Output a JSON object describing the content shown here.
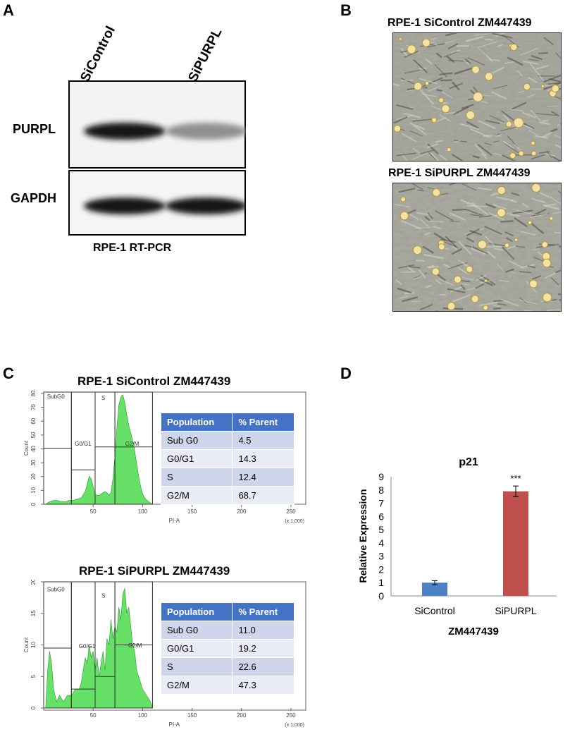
{
  "panel_a": {
    "letter": "A",
    "lane_labels": [
      "SiControl",
      "SiPURPL"
    ],
    "rows": [
      {
        "label": "PURPL",
        "band_intensity": [
          1.0,
          0.45
        ]
      },
      {
        "label": "GAPDH",
        "band_intensity": [
          1.0,
          1.0
        ]
      }
    ],
    "caption": "RPE-1 RT-PCR"
  },
  "panel_b": {
    "letter": "B",
    "images": [
      {
        "title": "RPE-1 SiControl ZM447439"
      },
      {
        "title": "RPE-1 SiPURPL ZM447439"
      }
    ]
  },
  "panel_c": {
    "letter": "C",
    "histograms": [
      {
        "title": "RPE-1 SiControl ZM447439",
        "gate_labels": [
          "SubG0",
          "G0/G1",
          "S",
          "G2/M"
        ],
        "y_ticks": [
          "0",
          "10",
          "20",
          "30",
          "40",
          "50",
          "60",
          "70",
          "80"
        ],
        "x_ticks": [
          "50",
          "100",
          "150",
          "200",
          "250"
        ],
        "x_label": "PI-A",
        "x_unit": "(x 1,000)",
        "y_label": "Count",
        "ymax": 88,
        "profile": [
          [
            2,
            0
          ],
          [
            6,
            2
          ],
          [
            10,
            3
          ],
          [
            14,
            3
          ],
          [
            18,
            2
          ],
          [
            22,
            2
          ],
          [
            26,
            3
          ],
          [
            30,
            3
          ],
          [
            34,
            4
          ],
          [
            38,
            5
          ],
          [
            42,
            10
          ],
          [
            44,
            16
          ],
          [
            46,
            22
          ],
          [
            48,
            20
          ],
          [
            50,
            14
          ],
          [
            52,
            8
          ],
          [
            54,
            7
          ],
          [
            56,
            7
          ],
          [
            58,
            8
          ],
          [
            60,
            9
          ],
          [
            62,
            10
          ],
          [
            64,
            9
          ],
          [
            66,
            7
          ],
          [
            68,
            9
          ],
          [
            70,
            20
          ],
          [
            72,
            38
          ],
          [
            74,
            60
          ],
          [
            76,
            78
          ],
          [
            78,
            84
          ],
          [
            80,
            86
          ],
          [
            82,
            80
          ],
          [
            84,
            70
          ],
          [
            86,
            62
          ],
          [
            88,
            56
          ],
          [
            90,
            50
          ],
          [
            92,
            42
          ],
          [
            94,
            32
          ],
          [
            96,
            22
          ],
          [
            98,
            14
          ],
          [
            100,
            8
          ],
          [
            103,
            4
          ],
          [
            106,
            2
          ],
          [
            110,
            0
          ]
        ],
        "table": {
          "headers": [
            "Population",
            "% Parent"
          ],
          "rows": [
            [
              "Sub G0",
              "4.5"
            ],
            [
              "G0/G1",
              "14.3"
            ],
            [
              "S",
              "12.4"
            ],
            [
              "G2/M",
              "68.7"
            ]
          ]
        }
      },
      {
        "title": "RPE-1 SiPURPL ZM447439",
        "gate_labels": [
          "SubG0",
          "G0/G1",
          "S",
          "G2/M"
        ],
        "y_ticks": [
          "0",
          "5",
          "10",
          "15",
          "20"
        ],
        "x_ticks": [
          "50",
          "100",
          "150",
          "200",
          "250"
        ],
        "x_label": "PI-A",
        "x_unit": "(x 1,000)",
        "y_label": "Count",
        "ymax": 20,
        "profile": [
          [
            2,
            0
          ],
          [
            4,
            6
          ],
          [
            6,
            9
          ],
          [
            8,
            7
          ],
          [
            10,
            3
          ],
          [
            13,
            1
          ],
          [
            16,
            2
          ],
          [
            20,
            1
          ],
          [
            24,
            2
          ],
          [
            28,
            2
          ],
          [
            32,
            3
          ],
          [
            36,
            3
          ],
          [
            38,
            4
          ],
          [
            40,
            6
          ],
          [
            42,
            8
          ],
          [
            44,
            7
          ],
          [
            46,
            10
          ],
          [
            48,
            8
          ],
          [
            50,
            9
          ],
          [
            52,
            6
          ],
          [
            54,
            8
          ],
          [
            56,
            5
          ],
          [
            58,
            7
          ],
          [
            60,
            9
          ],
          [
            62,
            6
          ],
          [
            64,
            11
          ],
          [
            66,
            10
          ],
          [
            68,
            14
          ],
          [
            70,
            11
          ],
          [
            72,
            13
          ],
          [
            74,
            12
          ],
          [
            76,
            16
          ],
          [
            78,
            14
          ],
          [
            80,
            18
          ],
          [
            82,
            19
          ],
          [
            84,
            15
          ],
          [
            86,
            16
          ],
          [
            88,
            13
          ],
          [
            90,
            10
          ],
          [
            92,
            9
          ],
          [
            94,
            6
          ],
          [
            96,
            5
          ],
          [
            98,
            4
          ],
          [
            100,
            3
          ],
          [
            104,
            2
          ],
          [
            108,
            1
          ],
          [
            110,
            0
          ]
        ],
        "table": {
          "headers": [
            "Population",
            "% Parent"
          ],
          "rows": [
            [
              "Sub G0",
              "11.0"
            ],
            [
              "G0/G1",
              "19.2"
            ],
            [
              "S",
              "22.6"
            ],
            [
              "G2/M",
              "47.3"
            ]
          ]
        }
      }
    ]
  },
  "panel_d": {
    "letter": "D",
    "chart_data": {
      "type": "bar",
      "title": "p21",
      "categories": [
        "SiControl",
        "SiPURPL"
      ],
      "values": [
        1.0,
        7.9
      ],
      "errors": [
        0.15,
        0.4
      ],
      "colors": [
        "#4e81c4",
        "#c0504d"
      ],
      "annotations": [
        "",
        "***"
      ],
      "ylabel": "Relative Expression",
      "xlabel": "ZM447439",
      "ylim": [
        0,
        9
      ],
      "yticks": [
        "0",
        "1",
        "2",
        "3",
        "4",
        "5",
        "6",
        "7",
        "8",
        "9"
      ],
      "grid": false
    }
  }
}
